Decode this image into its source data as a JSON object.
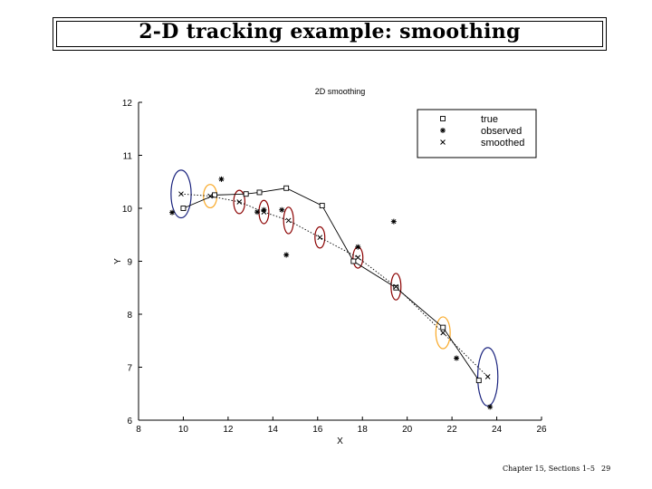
{
  "slide": {
    "title": "2-D tracking example: smoothing",
    "footer_chapter": "Chapter 15, Sections 1–5",
    "footer_page": "29"
  },
  "chart_data": {
    "type": "scatter",
    "title": "2D smoothing",
    "xlabel": "X",
    "ylabel": "Y",
    "xlim": [
      8,
      26
    ],
    "ylim": [
      6,
      12
    ],
    "xticks": [
      8,
      10,
      12,
      14,
      16,
      18,
      20,
      22,
      24,
      26
    ],
    "yticks": [
      6,
      7,
      8,
      9,
      10,
      11,
      12
    ],
    "grid": false,
    "legend_position": "top-right",
    "series": [
      {
        "name": "true",
        "marker": "square",
        "line": "solid",
        "color": "#000000",
        "x": [
          10.0,
          11.4,
          12.8,
          13.4,
          14.6,
          16.2,
          17.6,
          19.5,
          21.6,
          23.2
        ],
        "y": [
          10.0,
          10.25,
          10.27,
          10.3,
          10.38,
          10.05,
          9.0,
          8.5,
          7.75,
          6.75
        ]
      },
      {
        "name": "observed",
        "marker": "asterisk",
        "line": "none",
        "color": "#000000",
        "x": [
          9.5,
          11.7,
          13.3,
          13.6,
          14.4,
          14.6,
          17.8,
          19.4,
          22.2,
          23.7
        ],
        "y": [
          9.92,
          10.55,
          9.93,
          9.97,
          9.97,
          9.12,
          9.27,
          9.75,
          7.17,
          6.25
        ]
      },
      {
        "name": "smoothed",
        "marker": "x",
        "line": "dotted",
        "color": "#000000",
        "x": [
          9.9,
          11.2,
          12.5,
          13.6,
          14.7,
          16.1,
          17.8,
          19.5,
          21.6,
          23.6
        ],
        "y": [
          10.27,
          10.23,
          10.12,
          9.93,
          9.77,
          9.45,
          9.07,
          8.52,
          7.65,
          6.82
        ]
      }
    ],
    "uncertainty_ellipses": [
      {
        "cx": 9.9,
        "cy": 10.27,
        "rx": 0.45,
        "ry": 0.45,
        "color": "#1a237e"
      },
      {
        "cx": 11.2,
        "cy": 10.23,
        "rx": 0.3,
        "ry": 0.22,
        "color": "#f9a825"
      },
      {
        "cx": 12.5,
        "cy": 10.12,
        "rx": 0.25,
        "ry": 0.22,
        "color": "#8b0000"
      },
      {
        "cx": 13.6,
        "cy": 9.93,
        "rx": 0.22,
        "ry": 0.22,
        "color": "#8b0000"
      },
      {
        "cx": 14.7,
        "cy": 9.77,
        "rx": 0.22,
        "ry": 0.25,
        "color": "#8b0000"
      },
      {
        "cx": 16.1,
        "cy": 9.45,
        "rx": 0.22,
        "ry": 0.2,
        "color": "#8b0000"
      },
      {
        "cx": 17.8,
        "cy": 9.07,
        "rx": 0.22,
        "ry": 0.2,
        "color": "#8b0000"
      },
      {
        "cx": 19.5,
        "cy": 8.52,
        "rx": 0.22,
        "ry": 0.25,
        "color": "#8b0000"
      },
      {
        "cx": 21.6,
        "cy": 7.65,
        "rx": 0.32,
        "ry": 0.3,
        "color": "#f9a825"
      },
      {
        "cx": 23.6,
        "cy": 6.82,
        "rx": 0.45,
        "ry": 0.55,
        "color": "#1a237e"
      }
    ]
  }
}
